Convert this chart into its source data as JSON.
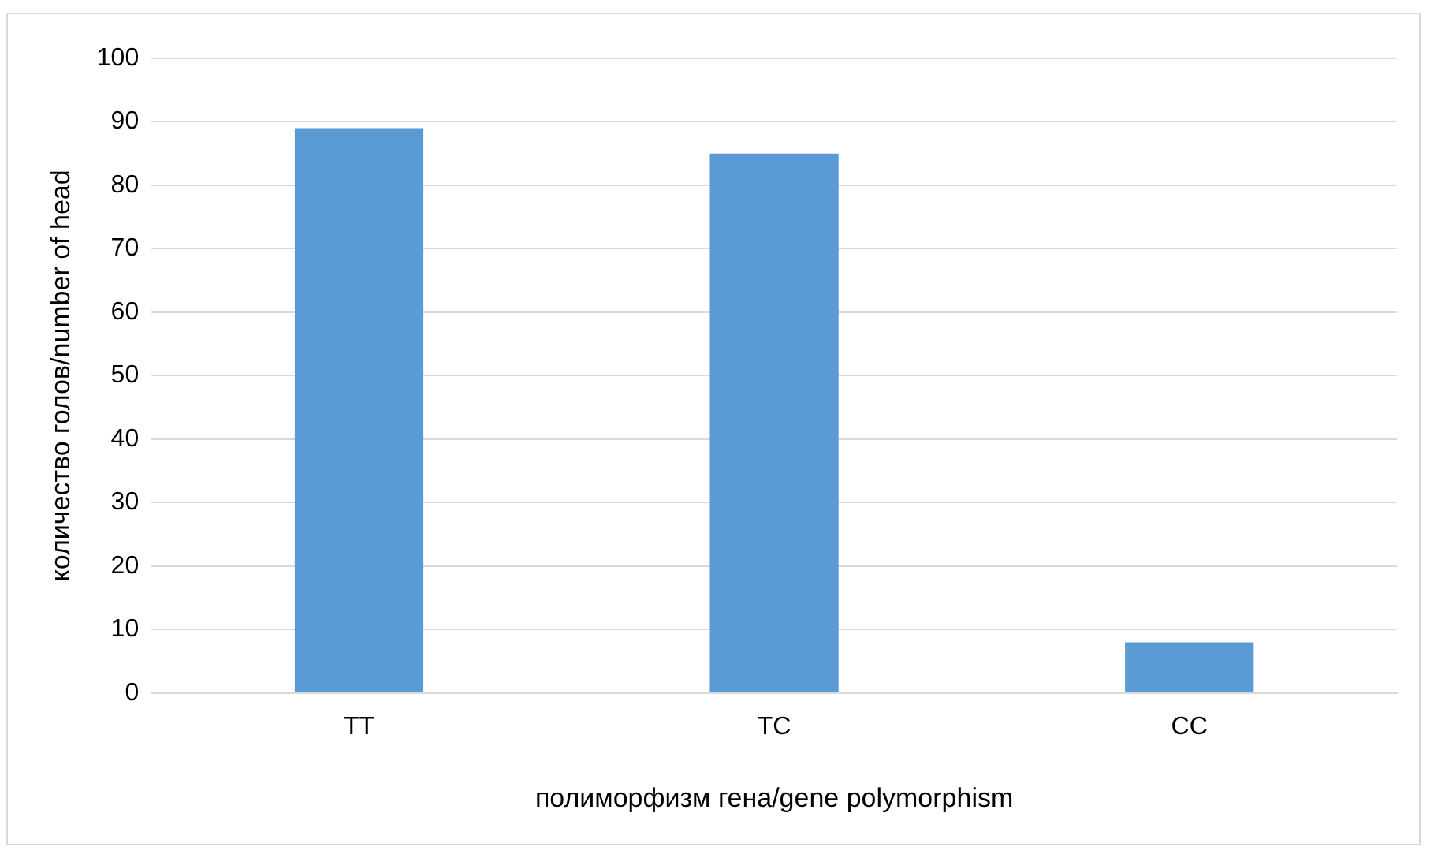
{
  "chart_data": {
    "type": "bar",
    "xlabel": "полиморфизм гена/gene polymorphism",
    "ylabel": "количество голов/number of head",
    "categories": [
      "TT",
      "TC",
      "CC"
    ],
    "values": [
      89,
      85,
      8
    ],
    "color": "#5b9bd5",
    "ylim": [
      0,
      100
    ],
    "yticks": [
      0,
      10,
      20,
      30,
      40,
      50,
      60,
      70,
      80,
      90,
      100
    ],
    "grid": "y",
    "legend": false
  }
}
